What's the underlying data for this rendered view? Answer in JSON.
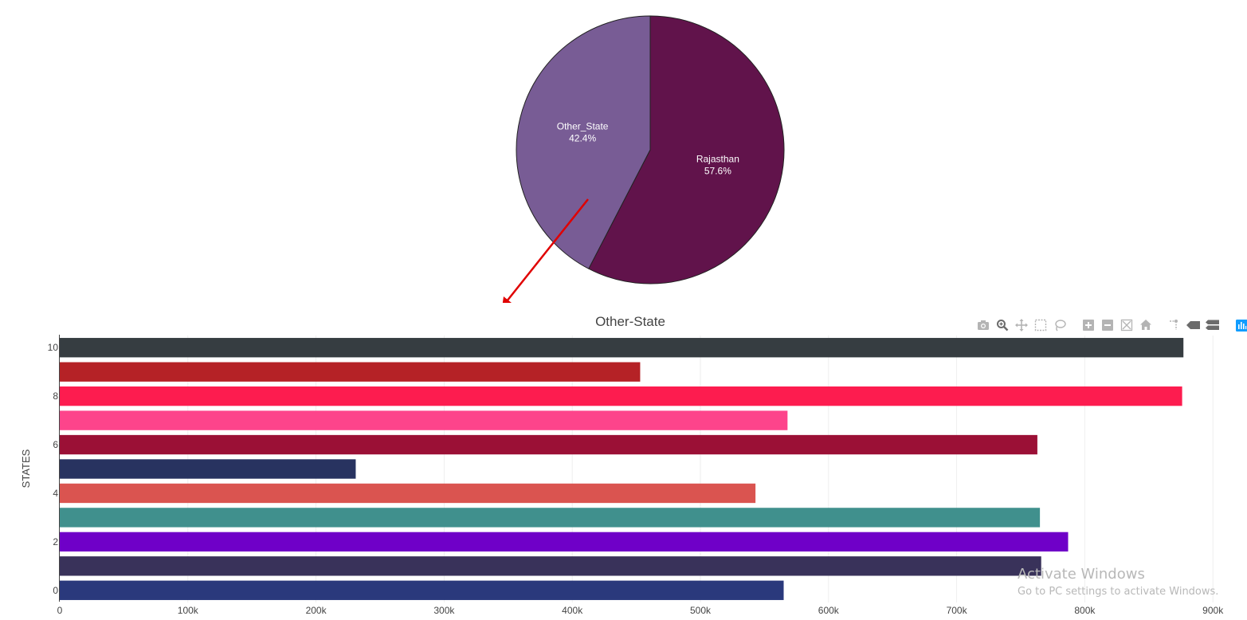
{
  "chart_data": [
    {
      "type": "pie",
      "slices": [
        {
          "label": "Rajasthan",
          "percent_text": "57.6%",
          "value": 57.6,
          "color": "#61134b"
        },
        {
          "label": "Other_State",
          "percent_text": "42.4%",
          "value": 42.4,
          "color": "#785c95"
        }
      ]
    },
    {
      "type": "bar",
      "orientation": "horizontal",
      "title": "Other-State",
      "ylabel": "STATES",
      "xlabel": "",
      "categories": [
        0,
        1,
        2,
        3,
        4,
        5,
        6,
        7,
        8,
        9,
        10
      ],
      "y_tick_labels": [
        "0",
        "2",
        "4",
        "6",
        "8",
        "10"
      ],
      "x_tick_labels": [
        "0",
        "100k",
        "200k",
        "300k",
        "400k",
        "500k",
        "600k",
        "700k",
        "800k",
        "900k"
      ],
      "xlim": [
        0,
        910000
      ],
      "grid": true,
      "values": [
        565000,
        766000,
        787000,
        765000,
        543000,
        231000,
        763000,
        568000,
        876000,
        453000,
        877000
      ],
      "colors": [
        "#2a397c",
        "#39325a",
        "#6f00c8",
        "#40908d",
        "#da5450",
        "#283360",
        "#9b1036",
        "#fd448b",
        "#fd1c4f",
        "#b52226",
        "#363d41"
      ]
    }
  ],
  "modebar": {
    "icons": [
      "camera-icon",
      "zoom-icon",
      "pan-icon",
      "box-select-icon",
      "lasso-select-icon",
      "zoom-in-icon",
      "zoom-out-icon",
      "autoscale-icon",
      "reset-axes-icon",
      "spike-lines-icon",
      "hover-closest-icon",
      "hover-compare-icon",
      "plotly-logo-icon"
    ],
    "colors": {
      "icon": "#b4b4b4",
      "active": "#6b6b6b",
      "logo": "#119dff"
    }
  },
  "annotation": {
    "arrow_color": "#e00000"
  },
  "watermark": {
    "title": "Activate Windows",
    "subtitle": "Go to PC settings to activate Windows."
  }
}
